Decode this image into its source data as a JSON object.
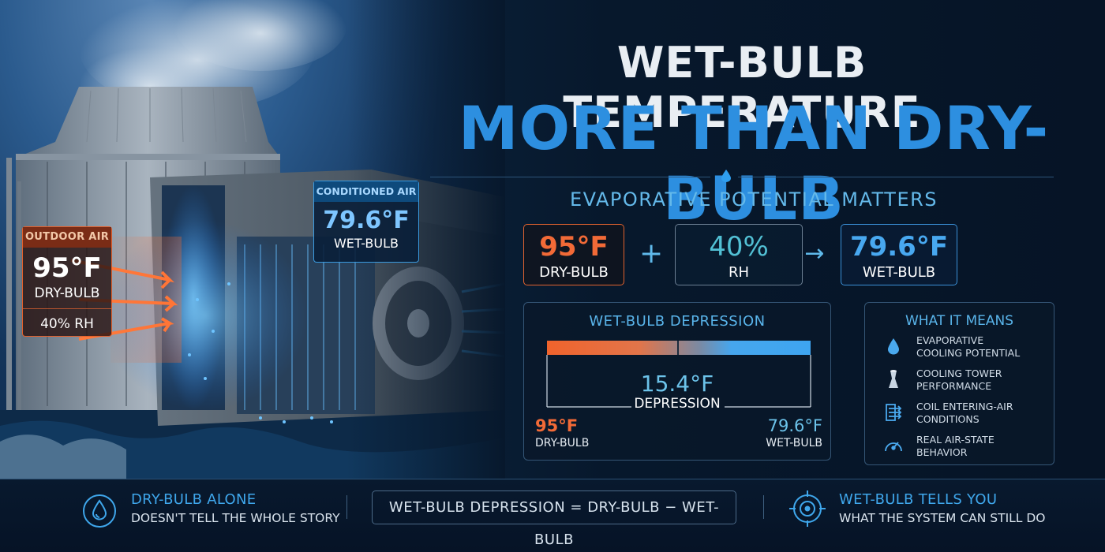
{
  "title": {
    "line1": "WET-BULB TEMPERATURE",
    "line2": "MORE THAN DRY-BULB",
    "subtitle": "EVAPORATIVE POTENTIAL MATTERS"
  },
  "illustration": {
    "outdoor_air": {
      "tag": "OUTDOOR AIR",
      "temp": "95°F",
      "label": "DRY-BULB",
      "rh": "40% RH"
    },
    "conditioned_air": {
      "tag": "CONDITIONED AIR",
      "temp": "79.6°F",
      "label": "WET-BULB"
    }
  },
  "equation": {
    "dry_bulb": {
      "value": "95°F",
      "label": "DRY-BULB"
    },
    "plus": "+",
    "rh": {
      "value": "40%",
      "label": "RH"
    },
    "arrow": "→",
    "wet_bulb": {
      "value": "79.6°F",
      "label": "WET-BULB"
    }
  },
  "depression": {
    "heading": "WET-BULB DEPRESSION",
    "value": "15.4°F",
    "label": "DEPRESSION",
    "left_value": "95°F",
    "left_label": "DRY-BULB",
    "right_value": "79.6°F",
    "right_label": "WET-BULB"
  },
  "what_it_means": {
    "heading": "WHAT IT MEANS",
    "items": [
      {
        "icon": "water-drop-icon",
        "line1": "EVAPORATIVE",
        "line2": "COOLING POTENTIAL"
      },
      {
        "icon": "cooling-tower-icon",
        "line1": "COOLING TOWER",
        "line2": "PERFORMANCE"
      },
      {
        "icon": "coil-icon",
        "line1": "COIL ENTERING-AIR",
        "line2": "CONDITIONS"
      },
      {
        "icon": "gauge-icon",
        "line1": "REAL AIR-STATE",
        "line2": "BEHAVIOR"
      }
    ]
  },
  "footer": {
    "left_heading": "DRY-BULB ALONE",
    "left_sub": "DOESN'T TELL THE WHOLE STORY",
    "formula": "WET-BULB DEPRESSION  =  DRY-BULB  −  WET-BULB",
    "right_heading": "WET-BULB TELLS YOU",
    "right_sub": "WHAT THE SYSTEM CAN STILL DO"
  },
  "colors": {
    "accent_blue": "#2d8fe0",
    "warm_orange": "#f26a37",
    "background": "#061424"
  }
}
